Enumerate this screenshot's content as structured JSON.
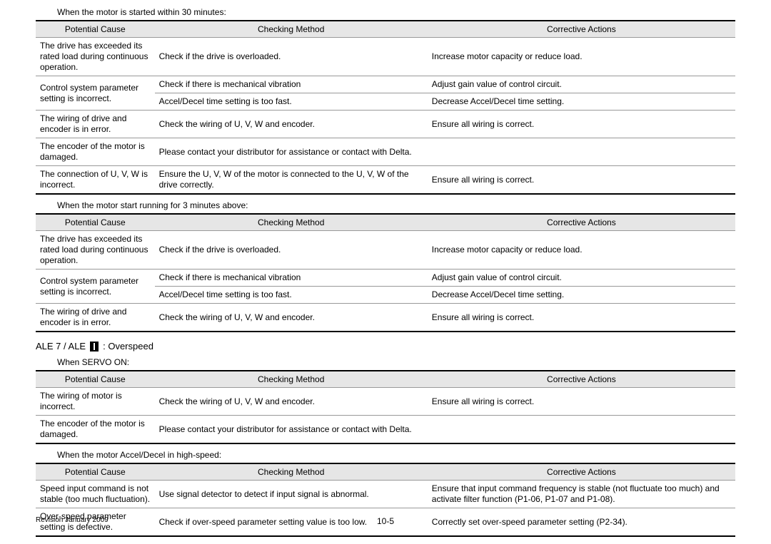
{
  "headers": {
    "cause": "Potential Cause",
    "method": "Checking Method",
    "action": "Corrective Actions"
  },
  "t1": {
    "title": "When the motor is started within 30 minutes:",
    "rows": [
      {
        "cause": "The drive has exceeded its rated load during continuous operation.",
        "method": "Check if the drive is overloaded.",
        "action": "Increase motor capacity or reduce load."
      },
      {
        "cause": "Control system parameter setting is incorrect.",
        "methods": [
          "Check if there is mechanical vibration",
          "Accel/Decel time setting is too fast."
        ],
        "actions": [
          "Adjust gain value of control circuit.",
          "Decrease Accel/Decel time setting."
        ]
      },
      {
        "cause": "The wiring of drive and encoder is in error.",
        "method": "Check the wiring of U, V, W and encoder.",
        "action": "Ensure all wiring is correct."
      },
      {
        "cause": "The encoder of the motor is damaged.",
        "span": "Please contact your distributor for assistance or contact with Delta."
      },
      {
        "cause": "The connection of U, V, W is incorrect.",
        "method": "Ensure the U, V, W of the motor is connected to the U, V, W of the drive correctly.",
        "action": "Ensure all wiring is correct."
      }
    ]
  },
  "t2": {
    "title": "When the motor start running for 3 minutes above:",
    "rows": [
      {
        "cause": "The drive has exceeded its rated load during continuous operation.",
        "method": "Check if the drive is overloaded.",
        "action": "Increase motor capacity or reduce load."
      },
      {
        "cause": "Control system parameter setting is incorrect.",
        "methods": [
          "Check if there is mechanical vibration",
          "Accel/Decel time setting is too fast."
        ],
        "actions": [
          "Adjust gain value of control circuit.",
          "Decrease Accel/Decel time setting."
        ]
      },
      {
        "cause": "The wiring of drive and encoder is in error.",
        "method": "Check the wiring of U, V, W and encoder.",
        "action": "Ensure all wiring is correct."
      }
    ]
  },
  "section": {
    "prefix": "ALE 7 / ALE",
    "suffix": ": Overspeed"
  },
  "t3": {
    "title": "When SERVO ON:",
    "rows": [
      {
        "cause": "The wiring of motor is incorrect.",
        "method": "Check the wiring of U, V, W and encoder.",
        "action": "Ensure all wiring is correct."
      },
      {
        "cause": "The encoder of the motor is damaged.",
        "span": "Please contact your distributor for assistance or contact with Delta."
      }
    ]
  },
  "t4": {
    "title": "When the motor Accel/Decel in high-speed:",
    "rows": [
      {
        "cause": "Speed input command is not stable (too much fluctuation).",
        "method": "Use signal detector to detect if input signal is abnormal.",
        "action": "Ensure that input command frequency is stable (not fluctuate too much) and activate filter function (P1-06, P1-07 and P1-08)."
      },
      {
        "cause": "Over-speed parameter setting is defective.",
        "method": "Check if over-speed parameter setting value is too low.",
        "action": "Correctly set over-speed parameter setting (P2-34)."
      }
    ]
  },
  "footer": {
    "revision": "Revision January 2009",
    "page": "10-5"
  }
}
